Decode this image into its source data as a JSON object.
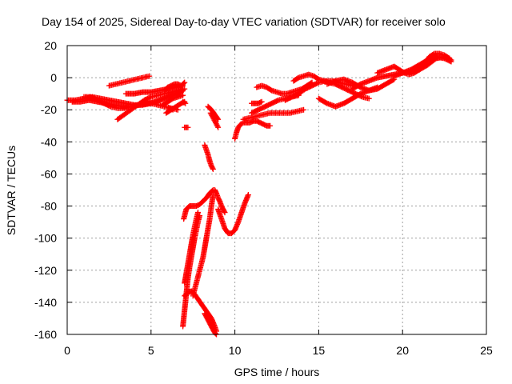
{
  "chart_data": {
    "type": "scatter",
    "title": "Day 154 of 2025, Sidereal Day-to-day VTEC variation (SDTVAR) for receiver solo",
    "xlabel": "GPS time / hours",
    "ylabel": "SDTVAR / TECUs",
    "xlim": [
      0,
      25
    ],
    "ylim": [
      -160,
      20
    ],
    "x_ticks": [
      0,
      5,
      10,
      15,
      20,
      25
    ],
    "y_ticks": [
      20,
      0,
      -20,
      -40,
      -60,
      -80,
      -100,
      -120,
      -140,
      -160
    ],
    "grid": true,
    "marker": "plus",
    "color": "#ff0000",
    "series": [
      {
        "x": [
          0.0,
          0.5,
          1.0,
          1.5,
          2.0,
          2.5,
          3.0,
          3.5,
          4.0,
          4.5,
          5.0,
          5.5,
          6.0,
          6.5,
          6.9
        ],
        "y": [
          -14,
          -14,
          -13,
          -12,
          -13,
          -14,
          -15,
          -16,
          -17,
          -17,
          -16,
          -14,
          -12,
          -10,
          -8
        ]
      },
      {
        "x": [
          0.3,
          0.8,
          1.3,
          1.8,
          2.3,
          2.8,
          3.3,
          3.8,
          4.3,
          4.8,
          5.3,
          5.8,
          6.3,
          6.8
        ],
        "y": [
          -15,
          -15,
          -14,
          -15,
          -16,
          -17,
          -18,
          -18,
          -17,
          -16,
          -15,
          -13,
          -11,
          -9
        ]
      },
      {
        "x": [
          1.0,
          1.4,
          1.8,
          2.2,
          2.6,
          3.0,
          3.4,
          3.8,
          4.2,
          4.6,
          5.0,
          5.4,
          5.8,
          6.2,
          6.6
        ],
        "y": [
          -12,
          -12,
          -14,
          -16,
          -18,
          -19,
          -19,
          -18,
          -17,
          -16,
          -16,
          -17,
          -18,
          -19,
          -20
        ]
      },
      {
        "x": [
          2.5,
          2.9,
          3.3,
          3.7,
          4.1,
          4.5,
          4.9
        ],
        "y": [
          -5,
          -4,
          -3,
          -2,
          -1,
          0,
          1
        ]
      },
      {
        "x": [
          3.0,
          3.4,
          3.8,
          4.2,
          4.6,
          5.0,
          5.4,
          5.8,
          6.2,
          6.6,
          7.0
        ],
        "y": [
          -26,
          -23,
          -20,
          -17,
          -14,
          -12,
          -11,
          -10,
          -9,
          -8,
          -7
        ]
      },
      {
        "x": [
          3.5,
          4.0,
          4.5,
          5.0,
          5.5,
          6.0,
          6.5,
          6.9
        ],
        "y": [
          -10,
          -10,
          -9,
          -9,
          -8,
          -7,
          -6,
          -5
        ]
      },
      {
        "x": [
          5.8,
          6.0,
          6.2,
          6.4,
          6.6,
          6.8,
          7.0
        ],
        "y": [
          -8,
          -6,
          -5,
          -4,
          -4,
          -5,
          -3
        ]
      },
      {
        "x": [
          5.7,
          6.0,
          6.3,
          6.6,
          6.9
        ],
        "y": [
          -17,
          -15,
          -13,
          -12,
          -11
        ]
      },
      {
        "x": [
          5.9,
          6.2,
          6.5,
          6.8,
          7.0
        ],
        "y": [
          -22,
          -20,
          -18,
          -16,
          -15
        ]
      },
      {
        "x": [
          6.9,
          7.05
        ],
        "y": [
          -15,
          -16
        ]
      },
      {
        "x": [
          7.0,
          7.2
        ],
        "y": [
          -31,
          -31
        ]
      },
      {
        "x": [
          6.1,
          6.3
        ],
        "y": [
          -19,
          -20
        ]
      },
      {
        "x": [
          8.4,
          8.6,
          8.8,
          9.0
        ],
        "y": [
          -18,
          -20,
          -23,
          -26
        ]
      },
      {
        "x": [
          8.55,
          8.7,
          8.85,
          9.0
        ],
        "y": [
          -22,
          -25,
          -28,
          -31
        ]
      },
      {
        "x": [
          8.2,
          8.3,
          8.4,
          8.5
        ],
        "y": [
          -42,
          -45,
          -48,
          -52
        ]
      },
      {
        "x": [
          8.5,
          8.6,
          8.7
        ],
        "y": [
          -52,
          -55,
          -57
        ]
      },
      {
        "x": [
          10.0,
          10.1,
          10.2,
          10.35,
          10.5,
          10.7,
          10.9,
          11.1,
          11.3,
          11.5,
          11.7,
          11.9,
          12.1
        ],
        "y": [
          -38,
          -34,
          -31,
          -29,
          -28,
          -28,
          -28,
          -27,
          -27,
          -28,
          -29,
          -30,
          -30
        ]
      },
      {
        "x": [
          10.5,
          10.9,
          11.3,
          11.7,
          12.1,
          12.5,
          12.9,
          13.3,
          13.7,
          14.1
        ],
        "y": [
          -26,
          -25,
          -24,
          -23,
          -22,
          -22,
          -22,
          -22,
          -21,
          -20
        ]
      },
      {
        "x": [
          11.0,
          11.4,
          11.8,
          12.2,
          12.6,
          13.0,
          13.4,
          13.8
        ],
        "y": [
          -22,
          -20,
          -18,
          -16,
          -14,
          -13,
          -12,
          -11
        ]
      },
      {
        "x": [
          11.0,
          11.2,
          11.4,
          11.6
        ],
        "y": [
          -16,
          -16,
          -16,
          -15
        ]
      },
      {
        "x": [
          11.3,
          11.6,
          11.9,
          12.2,
          12.5,
          12.8,
          13.1,
          13.4,
          13.7,
          14.0,
          14.3,
          14.6
        ],
        "y": [
          -6,
          -5,
          -6,
          -8,
          -9,
          -10,
          -10,
          -9,
          -8,
          -7,
          -5,
          -3
        ]
      },
      {
        "x": [
          13.0,
          13.4,
          13.8,
          14.2,
          14.6,
          15.0,
          15.4,
          15.8,
          16.2,
          16.6,
          17.0
        ],
        "y": [
          -14,
          -12,
          -10,
          -7,
          -5,
          -3,
          -2,
          -2,
          -3,
          -4,
          -5
        ]
      },
      {
        "x": [
          13.5,
          13.8,
          14.1,
          14.4,
          14.7,
          15.0,
          15.3,
          15.6,
          16.0,
          16.4,
          16.8,
          17.2,
          17.6,
          18.0
        ],
        "y": [
          -2,
          0,
          1,
          2,
          1,
          -1,
          -2,
          -3,
          -4,
          -6,
          -8,
          -10,
          -12,
          -13
        ]
      },
      {
        "x": [
          15.0,
          15.5,
          16.0,
          16.5,
          17.0,
          17.5,
          18.0,
          18.5
        ],
        "y": [
          -13,
          -16,
          -18,
          -16,
          -13,
          -10,
          -8,
          -6
        ]
      },
      {
        "x": [
          15.5,
          16.0,
          16.5,
          17.0,
          17.5,
          18.0,
          18.5,
          19.0,
          19.5
        ],
        "y": [
          -4,
          -2,
          -1,
          -3,
          -6,
          -8,
          -7,
          -4,
          -1
        ]
      },
      {
        "x": [
          17.0,
          17.5,
          18.0,
          18.5,
          19.0,
          19.5,
          20.0,
          20.5,
          21.0,
          21.5,
          22.0,
          22.5,
          22.9
        ],
        "y": [
          -7,
          -4,
          -2,
          0,
          1,
          2,
          3,
          4,
          5,
          8,
          12,
          13,
          11
        ]
      },
      {
        "x": [
          18.5,
          19.0,
          19.5,
          19.8,
          20.1,
          20.4,
          20.7,
          21.0,
          21.3,
          21.6,
          21.9,
          22.2,
          22.5,
          22.8
        ],
        "y": [
          3,
          5,
          7,
          5,
          3,
          2,
          3,
          5,
          9,
          13,
          15,
          15,
          14,
          12
        ]
      },
      {
        "x": [
          19.5,
          20.0,
          20.5,
          21.0,
          21.5,
          22.0,
          22.5,
          22.9
        ],
        "y": [
          1,
          3,
          5,
          8,
          11,
          13,
          12,
          10
        ]
      },
      {
        "x": [
          6.9,
          7.0,
          7.1,
          7.2,
          7.3,
          7.4,
          7.5,
          7.6,
          7.7,
          7.8,
          7.9
        ],
        "y": [
          -155,
          -145,
          -135,
          -125,
          -118,
          -112,
          -106,
          -100,
          -95,
          -90,
          -86
        ]
      },
      {
        "x": [
          7.0,
          7.1,
          7.2,
          7.3,
          7.4,
          7.5,
          7.6,
          7.7,
          7.8
        ],
        "y": [
          -128,
          -122,
          -116,
          -110,
          -104,
          -98,
          -93,
          -88,
          -84
        ]
      },
      {
        "x": [
          6.95,
          7.1,
          7.3,
          7.5,
          7.7,
          7.9,
          8.1,
          8.3,
          8.5,
          8.7,
          8.8
        ],
        "y": [
          -88,
          -82,
          -80,
          -80,
          -80,
          -79,
          -77,
          -75,
          -72,
          -70,
          -70
        ]
      },
      {
        "x": [
          7.5,
          7.6,
          7.7,
          7.8,
          7.9,
          8.0,
          8.1,
          8.2,
          8.3,
          8.4,
          8.5,
          8.6,
          8.7
        ],
        "y": [
          -136,
          -132,
          -128,
          -124,
          -120,
          -116,
          -112,
          -106,
          -100,
          -94,
          -88,
          -80,
          -73
        ]
      },
      {
        "x": [
          7.0,
          7.2,
          7.4,
          7.6,
          7.8,
          8.0,
          8.2,
          8.4,
          8.6,
          8.8,
          8.9
        ],
        "y": [
          -136,
          -134,
          -133,
          -135,
          -138,
          -141,
          -144,
          -147,
          -150,
          -155,
          -158
        ]
      },
      {
        "x": [
          8.2,
          8.3,
          8.4,
          8.5,
          8.6,
          8.7,
          8.8,
          8.9
        ],
        "y": [
          -147,
          -149,
          -151,
          -153,
          -155,
          -157,
          -159,
          -160
        ]
      },
      {
        "x": [
          8.8,
          8.9,
          9.0,
          9.1,
          9.2,
          9.3,
          9.4
        ],
        "y": [
          -70,
          -72,
          -75,
          -77,
          -80,
          -82,
          -84
        ]
      },
      {
        "x": [
          9.0,
          9.2,
          9.4,
          9.6,
          9.8,
          10.0,
          10.2,
          10.4,
          10.6,
          10.8
        ],
        "y": [
          -82,
          -88,
          -94,
          -97,
          -97,
          -95,
          -90,
          -84,
          -78,
          -73
        ]
      }
    ]
  }
}
